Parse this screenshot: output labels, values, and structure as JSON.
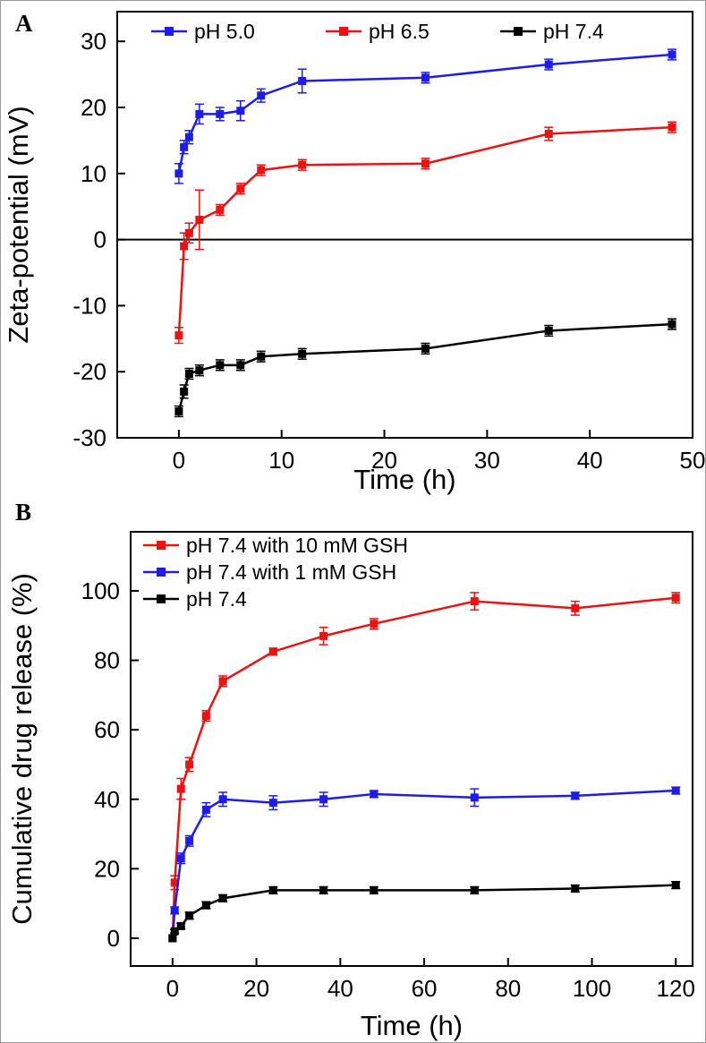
{
  "figure": {
    "panels": [
      {
        "label": "A"
      },
      {
        "label": "B"
      }
    ]
  },
  "chart_data": [
    {
      "type": "line",
      "panel": "A",
      "title": "",
      "xlabel": "Time (h)",
      "ylabel": "Zeta-potential (mV)",
      "xlim": [
        -6,
        50
      ],
      "ylim": [
        -30,
        34.5
      ],
      "xticks": [
        0,
        10,
        20,
        30,
        40,
        50
      ],
      "yticks": [
        -30,
        -20,
        -10,
        0,
        10,
        20,
        30
      ],
      "grid": false,
      "legend": {
        "position": "top-inside",
        "orientation": "horizontal"
      },
      "ref_lines": [
        {
          "axis": "y",
          "value": 0
        }
      ],
      "series": [
        {
          "name": "pH 5.0",
          "color": "#1c1cf0",
          "x": [
            0,
            0.5,
            1,
            2,
            4,
            6,
            8,
            12,
            24,
            36,
            48
          ],
          "y": [
            10,
            14,
            15.5,
            19,
            19,
            19.5,
            21.8,
            24,
            24.5,
            26.5,
            28
          ],
          "err": [
            1.5,
            1,
            1,
            1.5,
            1,
            1.5,
            1,
            1.8,
            0.8,
            0.8,
            0.8
          ]
        },
        {
          "name": "pH 6.5",
          "color": "#ee1111",
          "x": [
            0,
            0.5,
            1,
            2,
            4,
            6,
            8,
            12,
            24,
            36,
            48
          ],
          "y": [
            -14.5,
            -1,
            1,
            3,
            4.5,
            7.7,
            10.5,
            11.3,
            11.5,
            16,
            17
          ],
          "err": [
            1.2,
            2,
            1.5,
            4.5,
            0.8,
            0.8,
            0.8,
            0.8,
            0.8,
            1,
            0.8
          ]
        },
        {
          "name": "pH 7.4",
          "color": "#000000",
          "x": [
            0,
            0.5,
            1,
            2,
            4,
            6,
            8,
            12,
            24,
            36,
            48
          ],
          "y": [
            -26,
            -23,
            -20.3,
            -19.8,
            -19,
            -19,
            -17.7,
            -17.3,
            -16.5,
            -13.8,
            -12.8
          ],
          "err": [
            0.8,
            1,
            0.8,
            0.8,
            0.8,
            0.8,
            0.8,
            0.8,
            0.8,
            0.8,
            0.8
          ]
        }
      ]
    },
    {
      "type": "line",
      "panel": "B",
      "title": "",
      "xlabel": "Time (h)",
      "ylabel": "Cumulative drug release (%)",
      "xlim": [
        -10,
        124
      ],
      "ylim": [
        -8,
        117
      ],
      "xticks": [
        0,
        20,
        40,
        60,
        80,
        100,
        120
      ],
      "yticks": [
        0,
        20,
        40,
        60,
        80,
        100
      ],
      "grid": false,
      "legend": {
        "position": "top-left-inside",
        "orientation": "vertical"
      },
      "ref_lines": [],
      "series": [
        {
          "name": "pH 7.4 with 10 mM GSH",
          "color": "#ee1111",
          "x": [
            0,
            0.5,
            2,
            4,
            8,
            12,
            24,
            36,
            48,
            72,
            96,
            120
          ],
          "y": [
            0,
            16,
            43,
            50,
            64,
            74,
            82.5,
            87,
            90.5,
            97,
            95,
            98
          ],
          "err": [
            0,
            2,
            3,
            2,
            1.5,
            1.5,
            1,
            2.5,
            1.5,
            2.5,
            2,
            1.5
          ]
        },
        {
          "name": "pH 7.4 with 1 mM GSH",
          "color": "#1c1cf0",
          "x": [
            0,
            0.5,
            2,
            4,
            8,
            12,
            24,
            36,
            48,
            72,
            96,
            120
          ],
          "y": [
            0,
            8,
            23,
            28,
            37,
            40,
            39,
            40,
            41.5,
            40.5,
            41,
            42.5
          ],
          "err": [
            0,
            1,
            1.5,
            1.5,
            2,
            2,
            2,
            2,
            1,
            2.5,
            1,
            1
          ]
        },
        {
          "name": "pH 7.4",
          "color": "#000000",
          "x": [
            0,
            0.5,
            2,
            4,
            8,
            12,
            24,
            36,
            48,
            72,
            96,
            120
          ],
          "y": [
            0,
            2,
            3.5,
            6.5,
            9.5,
            11.5,
            13.8,
            13.8,
            13.8,
            13.8,
            14.3,
            15.3
          ],
          "err": [
            0,
            0.5,
            0.8,
            1,
            1,
            1,
            1,
            1,
            1,
            1,
            1,
            1
          ]
        }
      ]
    }
  ]
}
